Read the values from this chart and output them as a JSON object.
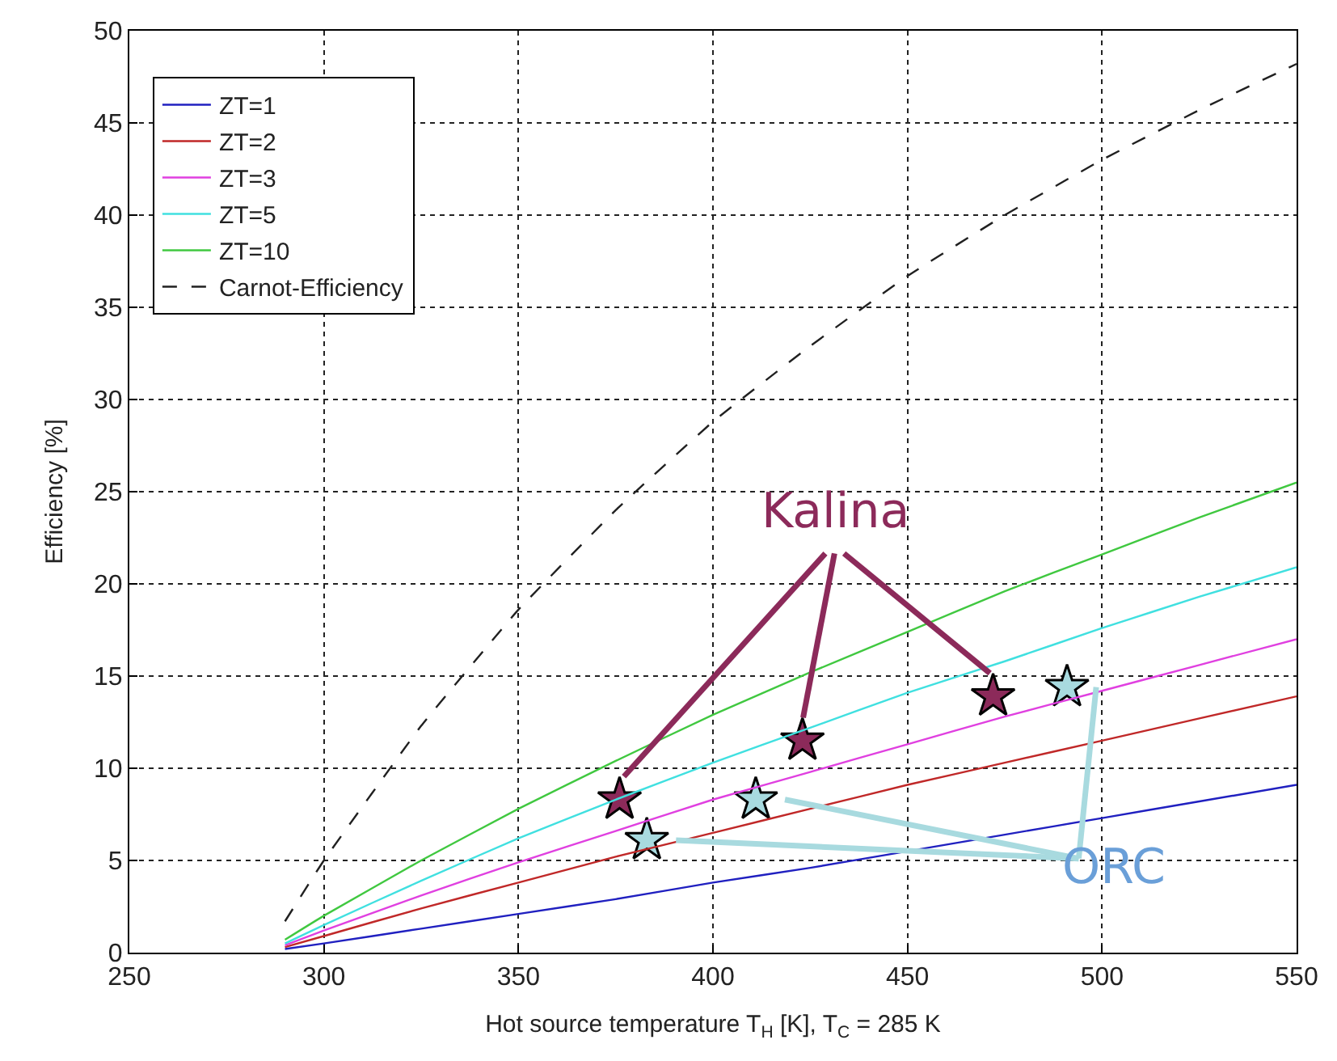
{
  "chart_data": {
    "type": "line",
    "xlabel": "Hot source temperature T$_{H}$ [K], T$_{C}$ = 285 K",
    "ylabel": "Efficiency [%]",
    "x": [
      290,
      300,
      325,
      350,
      375,
      400,
      425,
      450,
      475,
      500,
      525,
      550
    ],
    "series": [
      {
        "name": "ZT=1",
        "color": "#2020c0",
        "values": [
          0.2,
          0.5,
          1.3,
          2.1,
          2.9,
          3.8,
          4.6,
          5.5,
          6.4,
          7.3,
          8.2,
          9.1
        ]
      },
      {
        "name": "ZT=2",
        "color": "#c02828",
        "values": [
          0.3,
          0.9,
          2.4,
          3.8,
          5.2,
          6.5,
          7.8,
          9.1,
          10.3,
          11.5,
          12.7,
          13.9
        ]
      },
      {
        "name": "ZT=3",
        "color": "#e040e0",
        "values": [
          0.4,
          1.2,
          3.1,
          4.9,
          6.6,
          8.3,
          9.8,
          11.3,
          12.8,
          14.2,
          15.6,
          17.0
        ]
      },
      {
        "name": "ZT=5",
        "color": "#40e0e0",
        "values": [
          0.5,
          1.5,
          3.9,
          6.2,
          8.3,
          10.3,
          12.2,
          14.1,
          15.8,
          17.6,
          19.3,
          20.9
        ]
      },
      {
        "name": "ZT=10",
        "color": "#40c840",
        "values": [
          0.7,
          2.0,
          5.0,
          7.8,
          10.4,
          12.9,
          15.2,
          17.4,
          19.6,
          21.6,
          23.6,
          25.5
        ]
      },
      {
        "name": "Carnot-Efficiency",
        "color": "#202020",
        "line_style": "dashed",
        "values": [
          1.7,
          5.0,
          12.3,
          18.6,
          24.0,
          28.8,
          32.9,
          36.7,
          40.0,
          43.0,
          45.7,
          48.2
        ]
      },
      {
        "name": "Kalina",
        "type": "scatter",
        "marker": "star",
        "color": "#8c2a5a",
        "x": [
          376,
          423,
          472
        ],
        "values": [
          8.3,
          11.5,
          13.9
        ]
      },
      {
        "name": "ORC",
        "type": "scatter",
        "marker": "star",
        "color": "#a8dadf",
        "x": [
          383,
          411,
          491
        ],
        "values": [
          6.1,
          8.3,
          14.4
        ]
      }
    ],
    "xlim": [
      250,
      550
    ],
    "ylim": [
      0,
      50
    ],
    "xticks": [
      250,
      300,
      350,
      400,
      450,
      500,
      550
    ],
    "yticks": [
      0,
      5,
      10,
      15,
      20,
      25,
      30,
      35,
      40,
      45,
      50
    ],
    "grid": true,
    "legend": "top left",
    "line_style": "solid",
    "marker": "none"
  }
}
